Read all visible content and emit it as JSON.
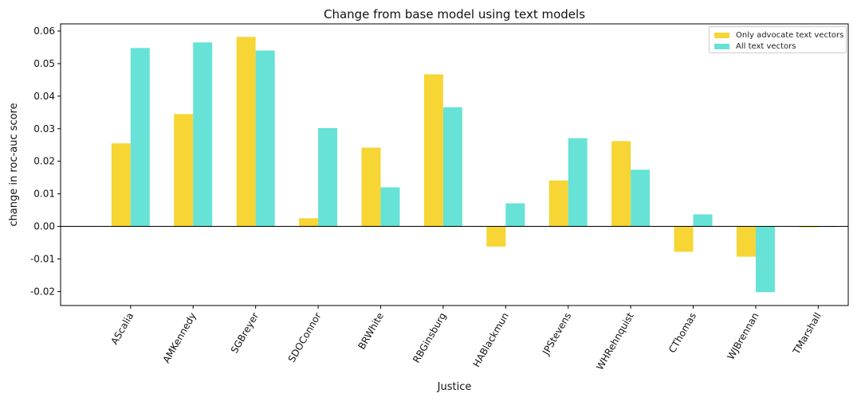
{
  "chart_data": {
    "type": "bar",
    "title": "Change from base model using text models",
    "xlabel": "Justice",
    "ylabel": "change in roc-auc score",
    "categories": [
      "AScalia",
      "AMKennedy",
      "SGBreyer",
      "SDOConnor",
      "BRWhite",
      "RBGinsburg",
      "HABlackmun",
      "JPStevens",
      "WHRehnquist",
      "CThomas",
      "WJBrennan",
      "TMarshall"
    ],
    "series": [
      {
        "name": "Only advocate text vectors",
        "color": "#f6d535",
        "values": [
          0.0255,
          0.0345,
          0.0582,
          0.0025,
          0.0242,
          0.0467,
          -0.0062,
          0.0141,
          0.0262,
          -0.0078,
          -0.0093,
          -0.0003
        ]
      },
      {
        "name": "All text vectors",
        "color": "#67e2d6",
        "values": [
          0.0548,
          0.0565,
          0.054,
          0.0302,
          0.012,
          0.0366,
          0.0071,
          0.0271,
          0.0174,
          0.0037,
          -0.0202,
          0.0
        ]
      }
    ],
    "ylim": [
      -0.0243,
      0.0622
    ],
    "yticks": [
      "-0.02",
      "-0.01",
      "0.00",
      "0.01",
      "0.02",
      "0.03",
      "0.04",
      "0.05",
      "0.06"
    ],
    "grid": false,
    "legend_position": "top-right"
  }
}
